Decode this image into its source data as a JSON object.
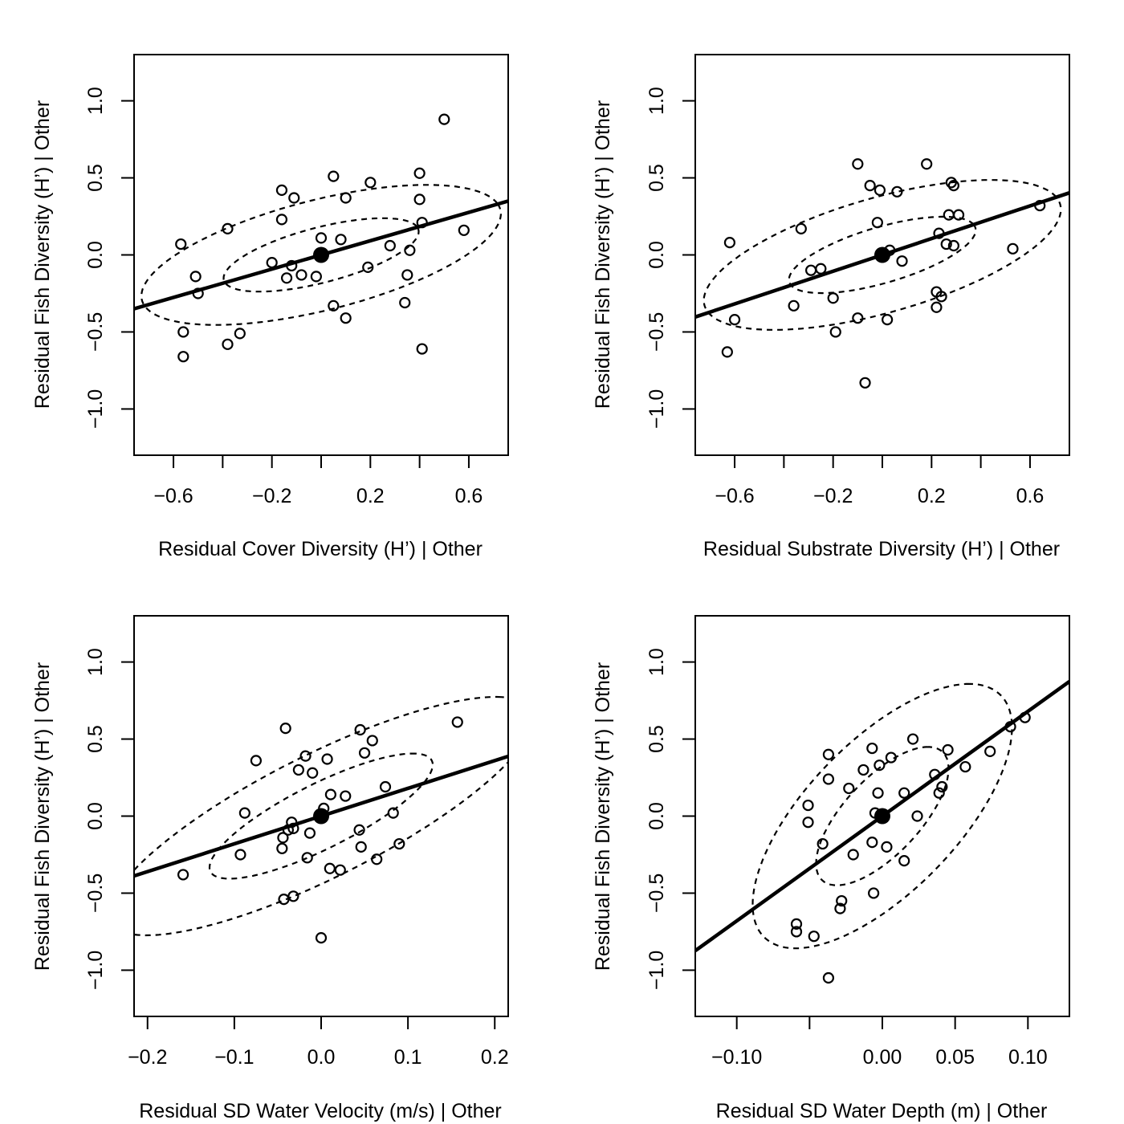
{
  "chart_data": [
    {
      "type": "scatter",
      "title": "",
      "xlabel": "Residual Cover Diversity (H’) | Other",
      "ylabel": "Residual Fish Diversity (H’) | Other",
      "xlim": [
        -0.76,
        0.76
      ],
      "ylim": [
        -1.3,
        1.3
      ],
      "x_ticks": [
        -0.6,
        -0.4,
        -0.2,
        0.0,
        0.2,
        0.4,
        0.6
      ],
      "x_tick_labels": [
        "−0.6",
        "",
        "−0.2",
        "",
        "0.2",
        "",
        "0.6"
      ],
      "y_ticks": [
        -1.0,
        -0.5,
        0.0,
        0.5,
        1.0
      ],
      "y_tick_labels": [
        "−1.0",
        "−0.5",
        "0.0",
        "0.5",
        "1.0"
      ],
      "grid": false,
      "regression": {
        "slope": 0.46,
        "intercept": 0.0
      },
      "center": [
        0.0,
        0.0
      ],
      "ellipses": [
        {
          "center": [
            0.0,
            0.0
          ],
          "semi_major": 0.43,
          "semi_minor": 0.17,
          "angle_deg": 25
        },
        {
          "center": [
            0.0,
            0.0
          ],
          "semi_major": 0.79,
          "semi_minor": 0.34,
          "angle_deg": 25
        }
      ],
      "points": [
        [
          -0.57,
          0.07
        ],
        [
          -0.56,
          -0.5
        ],
        [
          -0.56,
          -0.66
        ],
        [
          -0.51,
          -0.14
        ],
        [
          -0.5,
          -0.25
        ],
        [
          -0.38,
          0.17
        ],
        [
          -0.38,
          -0.58
        ],
        [
          -0.33,
          -0.51
        ],
        [
          -0.2,
          -0.05
        ],
        [
          -0.16,
          0.42
        ],
        [
          -0.16,
          0.23
        ],
        [
          -0.14,
          -0.15
        ],
        [
          -0.12,
          -0.07
        ],
        [
          -0.11,
          0.37
        ],
        [
          -0.08,
          -0.13
        ],
        [
          -0.02,
          -0.14
        ],
        [
          0.0,
          0.11
        ],
        [
          0.05,
          0.51
        ],
        [
          0.05,
          -0.33
        ],
        [
          0.08,
          0.1
        ],
        [
          0.1,
          0.37
        ],
        [
          0.1,
          -0.41
        ],
        [
          0.19,
          -0.08
        ],
        [
          0.2,
          0.47
        ],
        [
          0.28,
          0.06
        ],
        [
          0.34,
          -0.31
        ],
        [
          0.35,
          -0.13
        ],
        [
          0.36,
          0.03
        ],
        [
          0.4,
          0.53
        ],
        [
          0.4,
          0.36
        ],
        [
          0.41,
          0.21
        ],
        [
          0.41,
          -0.61
        ],
        [
          0.5,
          0.88
        ],
        [
          0.58,
          0.16
        ]
      ]
    },
    {
      "type": "scatter",
      "title": "",
      "xlabel": "Residual Substrate Diversity (H’) | Other",
      "ylabel": "Residual Fish Diversity (H’) | Other",
      "xlim": [
        -0.76,
        0.76
      ],
      "ylim": [
        -1.3,
        1.3
      ],
      "x_ticks": [
        -0.6,
        -0.4,
        -0.2,
        0.0,
        0.2,
        0.4,
        0.6
      ],
      "x_tick_labels": [
        "−0.6",
        "",
        "−0.2",
        "",
        "0.2",
        "",
        "0.6"
      ],
      "y_ticks": [
        -1.0,
        -0.5,
        0.0,
        0.5,
        1.0
      ],
      "y_tick_labels": [
        "−1.0",
        "−0.5",
        "0.0",
        "0.5",
        "1.0"
      ],
      "grid": false,
      "regression": {
        "slope": 0.53,
        "intercept": 0.0
      },
      "center": [
        0.0,
        0.0
      ],
      "ellipses": [
        {
          "center": [
            0.0,
            0.0
          ],
          "semi_major": 0.42,
          "semi_minor": 0.17,
          "angle_deg": 28
        },
        {
          "center": [
            0.0,
            0.0
          ],
          "semi_major": 0.8,
          "semi_minor": 0.35,
          "angle_deg": 28
        }
      ],
      "points": [
        [
          -0.62,
          0.08
        ],
        [
          -0.6,
          -0.42
        ],
        [
          -0.63,
          -0.63
        ],
        [
          -0.33,
          0.17
        ],
        [
          -0.36,
          -0.33
        ],
        [
          -0.29,
          -0.1
        ],
        [
          -0.25,
          -0.09
        ],
        [
          -0.2,
          -0.28
        ],
        [
          -0.19,
          -0.5
        ],
        [
          -0.1,
          0.59
        ],
        [
          -0.1,
          -0.41
        ],
        [
          -0.07,
          -0.83
        ],
        [
          -0.05,
          0.45
        ],
        [
          -0.02,
          0.21
        ],
        [
          -0.01,
          0.42
        ],
        [
          0.02,
          -0.42
        ],
        [
          0.03,
          0.03
        ],
        [
          0.06,
          0.41
        ],
        [
          0.08,
          -0.04
        ],
        [
          0.18,
          0.59
        ],
        [
          0.22,
          -0.24
        ],
        [
          0.22,
          -0.34
        ],
        [
          0.23,
          0.14
        ],
        [
          0.24,
          -0.27
        ],
        [
          0.26,
          0.07
        ],
        [
          0.27,
          0.26
        ],
        [
          0.28,
          0.47
        ],
        [
          0.29,
          0.45
        ],
        [
          0.29,
          0.06
        ],
        [
          0.31,
          0.26
        ],
        [
          0.53,
          0.04
        ],
        [
          0.64,
          0.32
        ]
      ]
    },
    {
      "type": "scatter",
      "title": "",
      "xlabel": "Residual SD Water Velocity (m/s) | Other",
      "ylabel": "Residual Fish Diversity (H’) | Other",
      "xlim": [
        -0.2155,
        0.2155
      ],
      "ylim": [
        -1.3,
        1.3
      ],
      "x_ticks": [
        -0.2,
        -0.1,
        0.0,
        0.1,
        0.2
      ],
      "x_tick_labels": [
        "−0.2",
        "−0.1",
        "0.0",
        "0.1",
        "0.2"
      ],
      "y_ticks": [
        -1.0,
        -0.5,
        0.0,
        0.5,
        1.0
      ],
      "y_tick_labels": [
        "−1.0",
        "−0.5",
        "0.0",
        "0.5",
        "1.0"
      ],
      "grid": false,
      "regression": {
        "slope": 1.8,
        "intercept": 0.0
      },
      "center": [
        0.0,
        0.0
      ],
      "ellipses": [
        {
          "center": [
            0.0,
            0.0
          ],
          "semi_major": 0.42,
          "semi_minor": 0.071,
          "angle_deg": 75
        },
        {
          "center": [
            0.0,
            0.0
          ],
          "semi_major": 0.8,
          "semi_minor": 0.135,
          "angle_deg": 75
        }
      ],
      "points": [
        [
          -0.159,
          -0.38
        ],
        [
          -0.093,
          -0.25
        ],
        [
          -0.088,
          0.02
        ],
        [
          -0.075,
          0.36
        ],
        [
          -0.045,
          -0.21
        ],
        [
          -0.044,
          -0.14
        ],
        [
          -0.043,
          -0.54
        ],
        [
          -0.041,
          0.57
        ],
        [
          -0.038,
          -0.09
        ],
        [
          -0.034,
          -0.04
        ],
        [
          -0.032,
          -0.08
        ],
        [
          -0.032,
          -0.52
        ],
        [
          -0.026,
          0.3
        ],
        [
          -0.018,
          0.39
        ],
        [
          -0.016,
          -0.27
        ],
        [
          -0.013,
          -0.11
        ],
        [
          -0.01,
          0.28
        ],
        [
          0.003,
          0.05
        ],
        [
          0.007,
          0.37
        ],
        [
          0.01,
          -0.34
        ],
        [
          0.011,
          0.14
        ],
        [
          0.022,
          -0.35
        ],
        [
          0.028,
          0.13
        ],
        [
          0.044,
          -0.09
        ],
        [
          0.045,
          0.56
        ],
        [
          0.046,
          -0.2
        ],
        [
          0.05,
          0.41
        ],
        [
          0.059,
          0.49
        ],
        [
          0.064,
          -0.28
        ],
        [
          0.074,
          0.19
        ],
        [
          0.083,
          0.02
        ],
        [
          0.09,
          -0.18
        ],
        [
          0.157,
          0.61
        ],
        [
          0.0,
          -0.79
        ]
      ]
    },
    {
      "type": "scatter",
      "title": "",
      "xlabel": "Residual SD Water Depth (m) | Other",
      "ylabel": "Residual Fish Diversity (H’) | Other",
      "xlim": [
        -0.1285,
        0.1285
      ],
      "ylim": [
        -1.3,
        1.3
      ],
      "x_ticks": [
        -0.1,
        -0.05,
        0.0,
        0.05,
        0.1
      ],
      "x_tick_labels": [
        "−0.10",
        "",
        "0.00",
        "0.05",
        "0.10"
      ],
      "y_ticks": [
        -1.0,
        -0.5,
        0.0,
        0.5,
        1.0
      ],
      "y_tick_labels": [
        "−1.0",
        "−0.5",
        "0.0",
        "0.5",
        "1.0"
      ],
      "grid": false,
      "regression": {
        "slope": 6.8,
        "intercept": 0.0
      },
      "center": [
        0.0,
        0.0
      ],
      "ellipses": [
        {
          "center": [
            0.0,
            0.0
          ],
          "semi_major": 0.45,
          "semi_minor": 0.033,
          "angle_deg": 86
        },
        {
          "center": [
            0.0,
            0.0
          ],
          "semi_major": 0.86,
          "semi_minor": 0.066,
          "angle_deg": 86
        }
      ],
      "points": [
        [
          -0.059,
          -0.7
        ],
        [
          -0.059,
          -0.75
        ],
        [
          -0.051,
          0.07
        ],
        [
          -0.051,
          -0.04
        ],
        [
          -0.047,
          -0.78
        ],
        [
          -0.041,
          -0.18
        ],
        [
          -0.037,
          0.4
        ],
        [
          -0.037,
          0.24
        ],
        [
          -0.037,
          -1.05
        ],
        [
          -0.029,
          -0.6
        ],
        [
          -0.028,
          -0.55
        ],
        [
          -0.023,
          0.18
        ],
        [
          -0.02,
          -0.25
        ],
        [
          -0.013,
          0.3
        ],
        [
          -0.007,
          0.44
        ],
        [
          -0.007,
          -0.17
        ],
        [
          -0.006,
          -0.5
        ],
        [
          -0.005,
          0.02
        ],
        [
          -0.003,
          0.15
        ],
        [
          -0.002,
          0.33
        ],
        [
          0.003,
          -0.2
        ],
        [
          0.006,
          0.38
        ],
        [
          0.015,
          0.15
        ],
        [
          0.015,
          -0.29
        ],
        [
          0.021,
          0.5
        ],
        [
          0.024,
          0.0
        ],
        [
          0.036,
          0.27
        ],
        [
          0.039,
          0.15
        ],
        [
          0.041,
          0.19
        ],
        [
          0.045,
          0.43
        ],
        [
          0.057,
          0.32
        ],
        [
          0.074,
          0.42
        ],
        [
          0.088,
          0.58
        ],
        [
          0.098,
          0.64
        ]
      ]
    }
  ]
}
